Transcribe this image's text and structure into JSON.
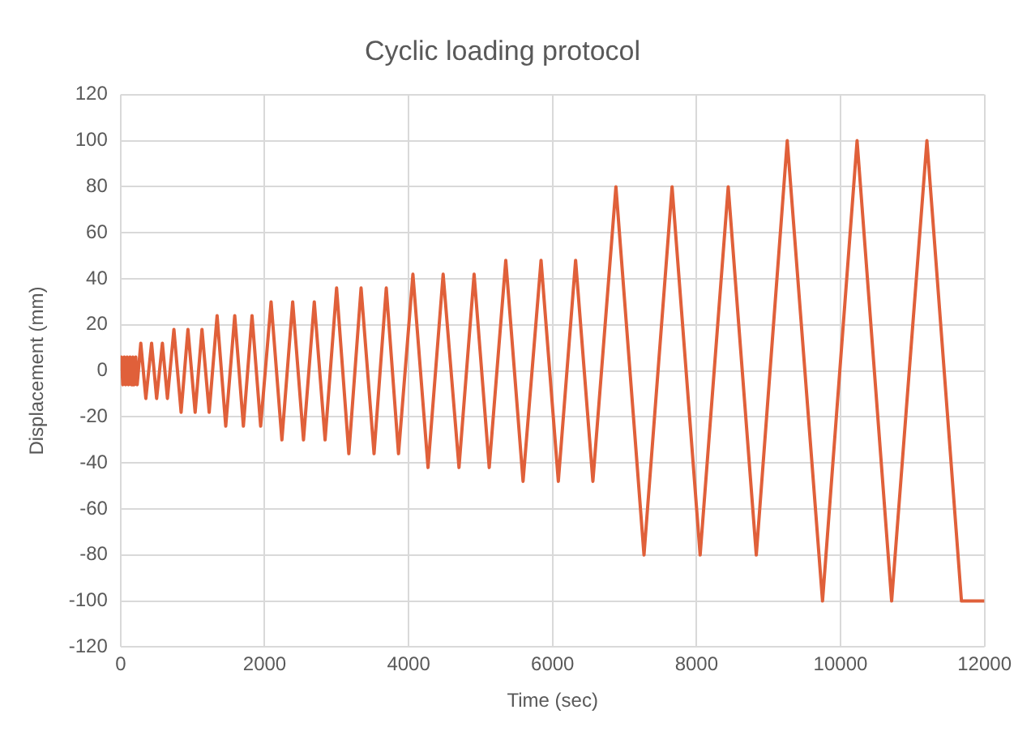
{
  "chart_data": {
    "type": "line",
    "title": "Cyclic loading protocol",
    "xlabel": "Time (sec)",
    "ylabel": "Displacement (mm)",
    "x": [
      0,
      10,
      30,
      50,
      70,
      90,
      110,
      130,
      150,
      170,
      190,
      210,
      230,
      280,
      350,
      430,
      500,
      580,
      650,
      740,
      840,
      935,
      1035,
      1130,
      1230,
      1340,
      1460,
      1585,
      1705,
      1825,
      1945,
      2090,
      2240,
      2390,
      2540,
      2690,
      2840,
      3000,
      3170,
      3340,
      3520,
      3690,
      3860,
      4060,
      4270,
      4480,
      4700,
      4910,
      5120,
      5350,
      5590,
      5840,
      6080,
      6320,
      6560,
      6880,
      7270,
      7660,
      8050,
      8440,
      8830,
      9260,
      9750,
      10230,
      10710,
      11200,
      11680,
      12000
    ],
    "values": [
      0,
      6,
      -6,
      6,
      -6,
      6,
      -6,
      6,
      -6,
      6,
      -6,
      6,
      -6,
      12,
      -12,
      12,
      -12,
      12,
      -12,
      18,
      -18,
      18,
      -18,
      18,
      -18,
      24,
      -24,
      24,
      -24,
      24,
      -24,
      30,
      -30,
      30,
      -30,
      30,
      -30,
      36,
      -36,
      36,
      -36,
      36,
      -36,
      42,
      -42,
      42,
      -42,
      42,
      -42,
      48,
      -48,
      48,
      -48,
      48,
      -48,
      80,
      -80,
      80,
      -80,
      80,
      -80,
      100,
      -100,
      100,
      -100,
      100,
      -100,
      -100
    ],
    "color": "#e0603a",
    "marker": "none",
    "xlim": [
      0,
      12000
    ],
    "xticks": [
      0,
      2000,
      4000,
      6000,
      8000,
      10000,
      12000
    ],
    "ylim": [
      -120,
      120
    ],
    "yticks": [
      -120,
      -100,
      -80,
      -60,
      -40,
      -20,
      0,
      20,
      40,
      60,
      80,
      100,
      120
    ],
    "grid": true,
    "legend": false
  }
}
